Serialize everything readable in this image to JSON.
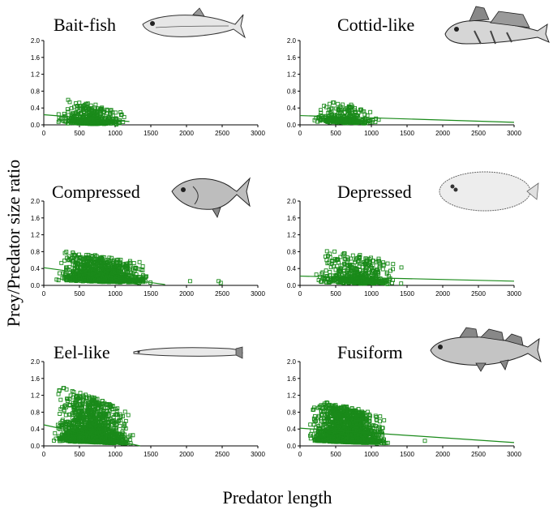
{
  "figure": {
    "ylabel": "Prey/Predator  size ratio",
    "xlabel": "Predator length"
  },
  "colors": {
    "points": "#1a8a1a",
    "line": "#1a8a1a",
    "axes": "#000000"
  },
  "icons": [
    "bait-fish-icon",
    "cottid-fish-icon",
    "compressed-fish-icon",
    "flatfish-icon",
    "eel-icon",
    "fusiform-fish-icon"
  ],
  "chart_data": [
    {
      "type": "scatter",
      "title": "Bait-fish",
      "xlim": [
        0,
        3000
      ],
      "ylim": [
        0,
        2.0
      ],
      "xticks": [
        "0",
        "500",
        "1000",
        "1500",
        "2000",
        "2500",
        "3000"
      ],
      "yticks": [
        "0.0",
        "0.4",
        "0.8",
        "1.2",
        "1.6",
        "2.0"
      ],
      "cluster": {
        "x_range": [
          150,
          1200
        ],
        "y_base": 0.12,
        "y_spread": 0.55,
        "n": 420
      },
      "trend": {
        "x": [
          0,
          1200
        ],
        "y": [
          0.24,
          0.08
        ]
      },
      "grid": false
    },
    {
      "type": "scatter",
      "title": "Cottid-like",
      "xlim": [
        0,
        3000
      ],
      "ylim": [
        0,
        2.0
      ],
      "xticks": [
        "0",
        "500",
        "1000",
        "1500",
        "2000",
        "2500",
        "3000"
      ],
      "yticks": [
        "0.0",
        "0.4",
        "0.8",
        "1.2",
        "1.6",
        "2.0"
      ],
      "cluster": {
        "x_range": [
          150,
          1150
        ],
        "y_base": 0.15,
        "y_spread": 0.5,
        "n": 300
      },
      "trend": {
        "x": [
          0,
          3000
        ],
        "y": [
          0.22,
          0.06
        ]
      },
      "grid": false
    },
    {
      "type": "scatter",
      "title": "Compressed",
      "xlim": [
        0,
        3000
      ],
      "ylim": [
        0,
        2.0
      ],
      "xticks": [
        "0",
        "500",
        "1000",
        "1500",
        "2000",
        "2500",
        "3000"
      ],
      "yticks": [
        "0.0",
        "0.4",
        "0.8",
        "1.2",
        "1.6",
        "2.0"
      ],
      "cluster": {
        "x_range": [
          100,
          1600
        ],
        "y_base": 0.2,
        "y_spread": 0.7,
        "n": 1200
      },
      "outliers": [
        {
          "x": 2050,
          "y": 0.1
        },
        {
          "x": 2450,
          "y": 0.1
        },
        {
          "x": 2480,
          "y": 0.06
        }
      ],
      "trend": {
        "x": [
          0,
          1700
        ],
        "y": [
          0.42,
          0.02
        ]
      },
      "grid": false
    },
    {
      "type": "scatter",
      "title": "Depressed",
      "xlim": [
        0,
        3000
      ],
      "ylim": [
        0,
        2.0
      ],
      "xticks": [
        "0",
        "500",
        "1000",
        "1500",
        "2000",
        "2500",
        "3000"
      ],
      "yticks": [
        "0.0",
        "0.4",
        "0.8",
        "1.2",
        "1.6",
        "2.0"
      ],
      "cluster": {
        "x_range": [
          150,
          1550
        ],
        "y_base": 0.15,
        "y_spread": 0.8,
        "n": 500
      },
      "trend": {
        "x": [
          0,
          3000
        ],
        "y": [
          0.22,
          0.1
        ]
      },
      "grid": false
    },
    {
      "type": "scatter",
      "title": "Eel-like",
      "xlim": [
        0,
        3000
      ],
      "ylim": [
        0,
        2.0
      ],
      "xticks": [
        "0",
        "500",
        "1000",
        "1500",
        "2000",
        "2500",
        "3000"
      ],
      "yticks": [
        "0.0",
        "0.4",
        "0.8",
        "1.2",
        "1.6",
        "2.0"
      ],
      "cluster": {
        "x_range": [
          100,
          1300
        ],
        "y_base": 0.2,
        "y_spread": 1.3,
        "n": 1600
      },
      "trend": {
        "x": [
          0,
          1350
        ],
        "y": [
          0.5,
          0.0
        ]
      },
      "grid": false
    },
    {
      "type": "scatter",
      "title": "Fusiform",
      "xlim": [
        0,
        3000
      ],
      "ylim": [
        0,
        2.0
      ],
      "xticks": [
        "0",
        "500",
        "1000",
        "1500",
        "2000",
        "2500",
        "3000"
      ],
      "yticks": [
        "0.0",
        "0.4",
        "0.8",
        "1.2",
        "1.6",
        "2.0"
      ],
      "cluster": {
        "x_range": [
          100,
          1300
        ],
        "y_base": 0.2,
        "y_spread": 1.0,
        "n": 2000
      },
      "outliers": [
        {
          "x": 1750,
          "y": 0.12
        }
      ],
      "trend": {
        "x": [
          0,
          3000
        ],
        "y": [
          0.42,
          0.08
        ]
      },
      "grid": false
    }
  ]
}
